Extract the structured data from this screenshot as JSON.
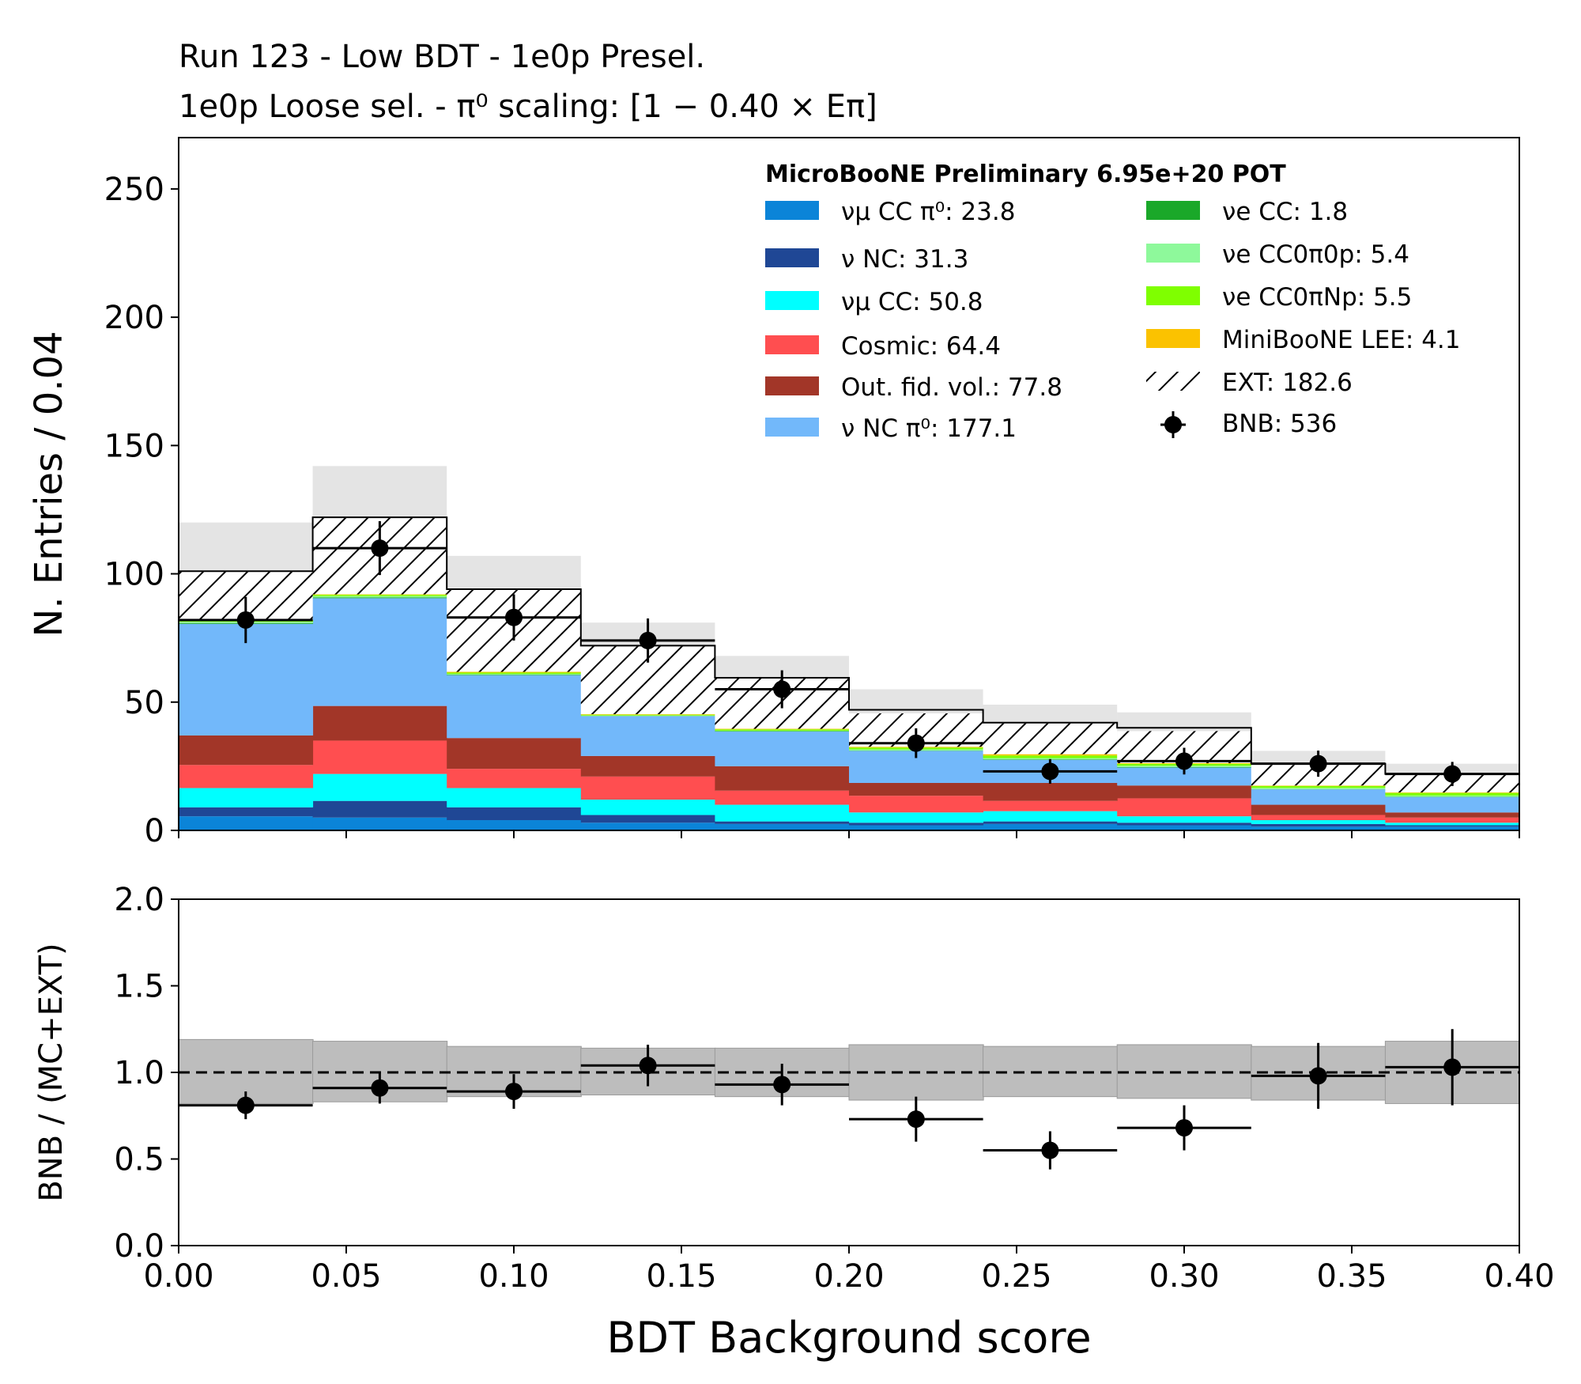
{
  "chart_data": [
    {
      "type": "bar",
      "subtype": "stacked-histogram",
      "title_line1": "Run 123 - Low BDT - 1e0p Presel.",
      "title_line2": "1e0p Loose sel. - π⁰ scaling: [1 − 0.40 × Eπ]",
      "ylabel": "N. Entries / 0.04",
      "xlabel": "BDT Background score",
      "xlim": [
        0.0,
        0.4
      ],
      "ylim": [
        0,
        270
      ],
      "yticks": [
        0,
        50,
        100,
        150,
        200,
        250
      ],
      "bin_edges": [
        0.0,
        0.04,
        0.08,
        0.12,
        0.16,
        0.2,
        0.24,
        0.28,
        0.32,
        0.36,
        0.4
      ],
      "legend_title": "MicroBooNE Preliminary 6.95e+20 POT",
      "legend_position": "upper-right",
      "series": [
        {
          "name": "νμ CC π⁰: 23.8",
          "color": "#0b84d8",
          "values": [
            5.5,
            5,
            4,
            3,
            2.5,
            2,
            2.5,
            2,
            1.5,
            1.5
          ]
        },
        {
          "name": "ν NC: 31.3",
          "color": "#1f4795",
          "values": [
            3.5,
            6.5,
            5,
            3,
            1,
            1,
            1,
            1,
            1,
            0.5
          ]
        },
        {
          "name": "νμ CC: 50.8",
          "color": "#00ffff",
          "values": [
            7.5,
            10.5,
            7.5,
            6,
            6.5,
            4,
            4,
            2.5,
            1.5,
            1
          ]
        },
        {
          "name": "Cosmic: 64.4",
          "color": "#ff4e50",
          "values": [
            9,
            13,
            7.5,
            9,
            5.5,
            6.5,
            4,
            7,
            2,
            2
          ]
        },
        {
          "name": "Out. fid. vol.: 77.8",
          "color": "#a23628",
          "values": [
            11.5,
            13.5,
            12,
            8,
            9.5,
            5,
            7,
            5,
            4,
            2
          ]
        },
        {
          "name": "ν NC π⁰: 177.1",
          "color": "#72b8fa",
          "values": [
            43.5,
            42,
            24.5,
            15.5,
            13.5,
            12.5,
            9,
            7,
            6,
            6
          ]
        },
        {
          "name": "νe CC: 1.8",
          "color": "#1aa829",
          "values": [
            0.3,
            0.3,
            0.2,
            0.1,
            0.2,
            0.1,
            0.2,
            0.2,
            0.1,
            0.1
          ]
        },
        {
          "name": "νe CC0π0p: 5.4",
          "color": "#8ef99b",
          "values": [
            0.5,
            0.5,
            0.3,
            0.2,
            0.2,
            0.5,
            0.5,
            0.5,
            0.5,
            0.5
          ]
        },
        {
          "name": "νe CC0πNp: 5.5",
          "color": "#7fff00",
          "values": [
            0.5,
            0.5,
            0.5,
            0.3,
            0.5,
            0.7,
            1,
            0.7,
            0.7,
            1
          ]
        },
        {
          "name": "MiniBooNE LEE: 4.1",
          "color": "#fbc200",
          "values": [
            0.2,
            0.2,
            0.3,
            0.2,
            0.2,
            0.3,
            0.5,
            0.3,
            0.2,
            0.2
          ]
        },
        {
          "name": "EXT: 182.6",
          "color": "hatch",
          "values": [
            19,
            30,
            32.5,
            26.5,
            20,
            13,
            12,
            12.5,
            8,
            7.5
          ]
        }
      ],
      "mc_ext_total": [
        101,
        122,
        94,
        72,
        59.5,
        47,
        42,
        40,
        26,
        22
      ],
      "uncertainty_low": [
        81,
        101,
        81,
        62,
        49,
        37,
        36,
        33,
        20,
        18
      ],
      "uncertainty_high": [
        120,
        142,
        107,
        81,
        68,
        55,
        49,
        46,
        31,
        26
      ],
      "data": {
        "name": "BNB: 536",
        "x": [
          0.02,
          0.06,
          0.1,
          0.14,
          0.18,
          0.22,
          0.26,
          0.3,
          0.34,
          0.38
        ],
        "y": [
          82,
          110,
          83,
          74,
          55,
          34,
          23,
          27,
          26,
          22
        ],
        "yerr": [
          9,
          10.5,
          9,
          8.6,
          7.4,
          5.8,
          4.8,
          5.2,
          5.1,
          4.7
        ]
      }
    },
    {
      "type": "scatter",
      "subtype": "ratio",
      "ylabel": "BNB / (MC+EXT)",
      "xlabel": "BDT Background score",
      "xlim": [
        0.0,
        0.4
      ],
      "ylim": [
        0.0,
        2.0
      ],
      "yticks": [
        "0.0",
        "0.5",
        "1.0",
        "1.5",
        "2.0"
      ],
      "xticks": [
        "0.00",
        "0.05",
        "0.10",
        "0.15",
        "0.20",
        "0.25",
        "0.30",
        "0.35",
        "0.40"
      ],
      "reference_line": 1.0,
      "band_low": [
        0.82,
        0.83,
        0.86,
        0.87,
        0.86,
        0.84,
        0.86,
        0.85,
        0.84,
        0.82
      ],
      "band_high": [
        1.19,
        1.18,
        1.15,
        1.14,
        1.14,
        1.16,
        1.15,
        1.16,
        1.15,
        1.18
      ],
      "ratio": [
        0.81,
        0.91,
        0.89,
        1.04,
        0.93,
        0.73,
        0.55,
        0.68,
        0.98,
        1.03
      ],
      "ratio_err": [
        0.08,
        0.09,
        0.1,
        0.12,
        0.12,
        0.13,
        0.11,
        0.13,
        0.19,
        0.22
      ]
    }
  ]
}
